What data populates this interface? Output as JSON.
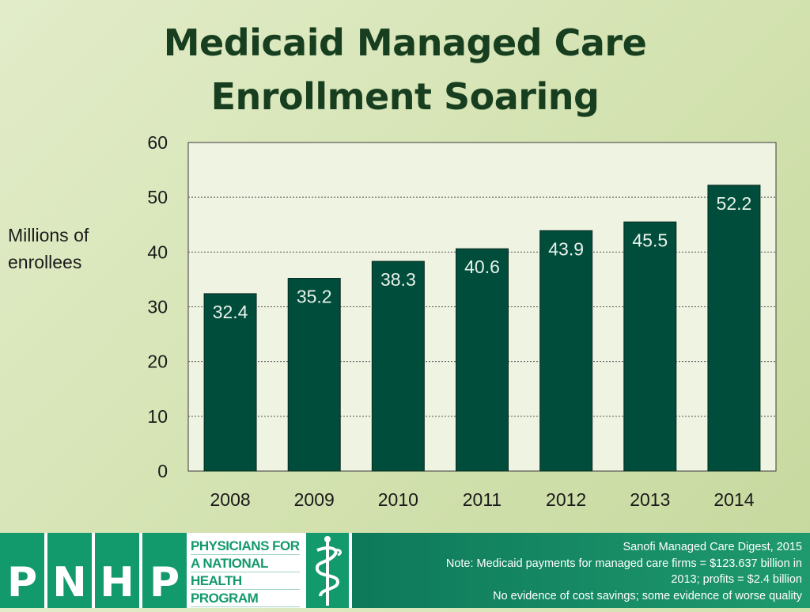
{
  "title": [
    "Medicaid Managed Care",
    "Enrollment Soaring"
  ],
  "chart_data": {
    "type": "bar",
    "categories": [
      "2008",
      "2009",
      "2010",
      "2011",
      "2012",
      "2013",
      "2014"
    ],
    "values": [
      32.4,
      35.2,
      38.3,
      40.6,
      43.9,
      45.5,
      52.2
    ],
    "data_labels": [
      "32.4",
      "35.2",
      "38.3",
      "40.6",
      "43.9",
      "45.5",
      "52.2"
    ],
    "yticks": [
      "0",
      "10",
      "20",
      "30",
      "40",
      "50",
      "60"
    ],
    "ylim": [
      0,
      60
    ],
    "ylabel": "Millions of enrollees",
    "xlabel": "",
    "grid": true,
    "legend": "none",
    "bar_color": "#004d3b"
  },
  "footer": {
    "logo_letters": [
      "P",
      "N",
      "H",
      "P"
    ],
    "logo_words": [
      "PHYSICIANS FOR",
      "A NATIONAL",
      "HEALTH",
      "PROGRAM"
    ],
    "logo_icon": "caduceus-icon",
    "notes": [
      "Sanofi Managed Care Digest, 2015",
      "Note: Medicaid payments for managed care firms = $123.637 billion in",
      "2013; profits =  $2.4 billion",
      "No evidence of cost savings; some evidence of worse quality"
    ]
  }
}
